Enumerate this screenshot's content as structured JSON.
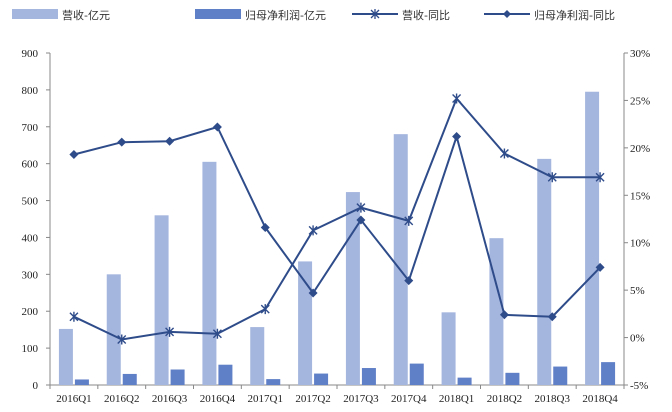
{
  "chart_data": {
    "type": "bar",
    "categories": [
      "2016Q1",
      "2016Q2",
      "2016Q3",
      "2016Q4",
      "2017Q1",
      "2017Q2",
      "2017Q3",
      "2017Q4",
      "2018Q1",
      "2018Q2",
      "2018Q3",
      "2018Q4"
    ],
    "series": [
      {
        "name": "营收-亿元",
        "type": "bar",
        "axis": "left",
        "color": "#a4b5de",
        "values": [
          152,
          300,
          460,
          605,
          157,
          335,
          523,
          680,
          197,
          398,
          613,
          795
        ]
      },
      {
        "name": "归母净利润-亿元",
        "type": "bar",
        "axis": "left",
        "color": "#5f7fc7",
        "values": [
          15,
          30,
          42,
          55,
          16,
          31,
          46,
          58,
          20,
          33,
          50,
          62
        ]
      },
      {
        "name": "营收-同比",
        "type": "line",
        "axis": "right",
        "color": "#2f4c8a",
        "marker": "asterisk",
        "values": [
          2.2,
          -0.2,
          0.6,
          0.4,
          3.0,
          11.3,
          13.7,
          12.3,
          25.2,
          19.4,
          16.9,
          16.9
        ]
      },
      {
        "name": "归母净利润-同比",
        "type": "line",
        "axis": "right",
        "color": "#2f4c8a",
        "marker": "diamond",
        "values": [
          19.3,
          20.6,
          20.7,
          22.2,
          11.6,
          4.7,
          12.4,
          6.0,
          21.2,
          2.4,
          2.2,
          7.4
        ]
      }
    ],
    "y_left": {
      "ylim": [
        0,
        900
      ],
      "ticks": [
        "0",
        "100",
        "200",
        "300",
        "400",
        "500",
        "600",
        "700",
        "800",
        "900"
      ]
    },
    "y_right": {
      "ylim": [
        -5,
        30
      ],
      "ticks": [
        "-5%",
        "0%",
        "5%",
        "10%",
        "15%",
        "20%",
        "25%",
        "30%"
      ]
    },
    "legend_position": "top",
    "grid": false
  }
}
